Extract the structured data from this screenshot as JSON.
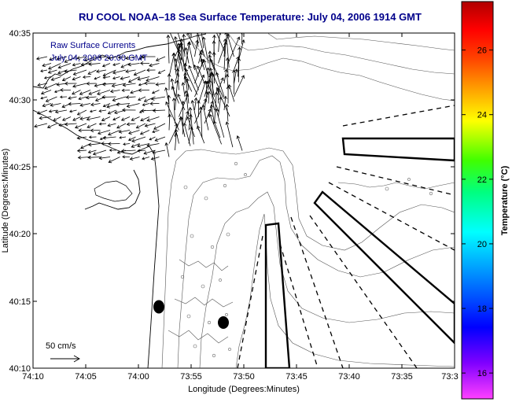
{
  "title": "RU COOL  NOAA–18  Sea Surface Temperature:  July 04, 2006 1914 GMT",
  "map": {
    "xlabel": "Longitude (Degrees:Minutes)",
    "ylabel": "Latitude (Degrees:Minutes)",
    "xticks": [
      "74:10",
      "74:05",
      "74:00",
      "73:55",
      "73:50",
      "73:45",
      "73:40",
      "73:35",
      "73:3"
    ],
    "yticks": [
      "40:35",
      "40:30",
      "40:25",
      "40:20",
      "40:15",
      "40:10"
    ],
    "inset_line1": "Raw Surface Currents",
    "inset_line2": "July 04, 2006 20:00 GMT",
    "scale_label": "50 cm/s"
  },
  "colorbar": {
    "label": "Temperature (°C)",
    "ticks": [
      "26",
      "24",
      "22",
      "20",
      "18",
      "16"
    ],
    "range": [
      15.2,
      27.5
    ],
    "color_stops": [
      "#ff40ff",
      "#8000ff",
      "#0000ff",
      "#0080ff",
      "#00ffff",
      "#00ff80",
      "#40ff00",
      "#ffff00",
      "#ffa000",
      "#ff4000",
      "#ff0000",
      "#b00000"
    ]
  }
}
